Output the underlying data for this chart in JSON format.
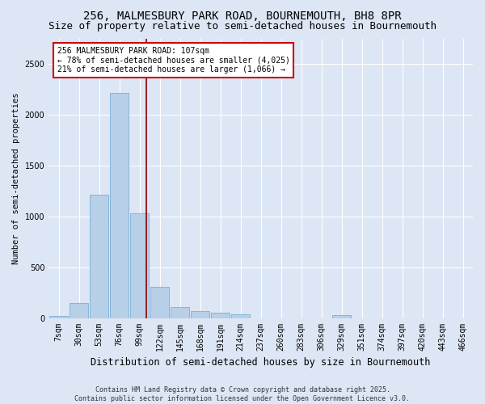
{
  "title": "256, MALMESBURY PARK ROAD, BOURNEMOUTH, BH8 8PR",
  "subtitle": "Size of property relative to semi-detached houses in Bournemouth",
  "xlabel": "Distribution of semi-detached houses by size in Bournemouth",
  "ylabel": "Number of semi-detached properties",
  "categories": [
    "7sqm",
    "30sqm",
    "53sqm",
    "76sqm",
    "99sqm",
    "122sqm",
    "145sqm",
    "168sqm",
    "191sqm",
    "214sqm",
    "237sqm",
    "260sqm",
    "283sqm",
    "306sqm",
    "329sqm",
    "351sqm",
    "374sqm",
    "397sqm",
    "420sqm",
    "443sqm",
    "466sqm"
  ],
  "values": [
    20,
    150,
    1210,
    2210,
    1030,
    310,
    110,
    65,
    55,
    40,
    0,
    0,
    0,
    0,
    30,
    0,
    0,
    0,
    0,
    0,
    0
  ],
  "bar_color": "#b8cfe8",
  "bar_edgecolor": "#7aafd4",
  "background_color": "#dce6f5",
  "grid_color": "#ffffff",
  "vline_color": "#8b0000",
  "annotation_text": "256 MALMESBURY PARK ROAD: 107sqm\n← 78% of semi-detached houses are smaller (4,025)\n21% of semi-detached houses are larger (1,066) →",
  "annotation_box_color": "#ffffff",
  "annotation_border_color": "#cc0000",
  "footer": "Contains HM Land Registry data © Crown copyright and database right 2025.\nContains public sector information licensed under the Open Government Licence v3.0.",
  "ylim": [
    0,
    2750
  ],
  "yticks": [
    0,
    500,
    1000,
    1500,
    2000,
    2500
  ],
  "title_fontsize": 10,
  "subtitle_fontsize": 9,
  "xlabel_fontsize": 8.5,
  "ylabel_fontsize": 7.5,
  "tick_fontsize": 7,
  "annotation_fontsize": 7,
  "footer_fontsize": 6
}
